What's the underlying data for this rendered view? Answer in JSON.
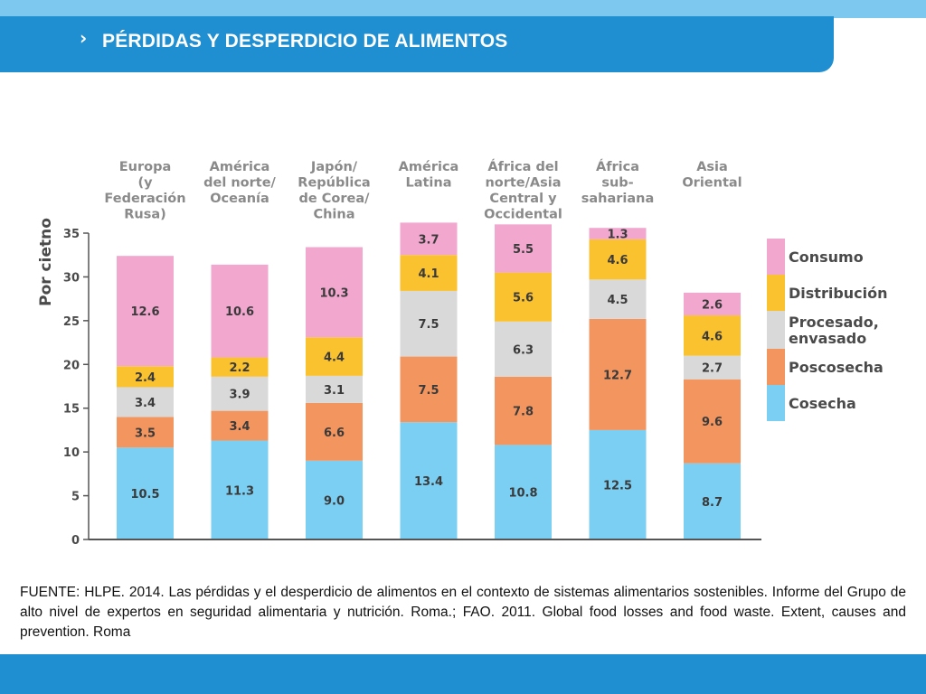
{
  "header": {
    "chevron": "›",
    "title": "PÉRDIDAS Y DESPERDICIO DE ALIMENTOS"
  },
  "colors": {
    "top_strip": "#7cc8ef",
    "title_bar": "#1f8fd1",
    "bottom_bar": "#1f8fd1"
  },
  "chart_data": {
    "type": "bar",
    "stacked": true,
    "ylabel": "Por cietno",
    "ylim": [
      0,
      35
    ],
    "yticks": [
      0,
      5,
      10,
      15,
      20,
      25,
      30,
      35
    ],
    "grid": false,
    "legend_position": "right",
    "categories": [
      [
        "Europa",
        "(y",
        "Federación",
        "Rusa)"
      ],
      [
        "América",
        "del norte/",
        "Oceanía"
      ],
      [
        "Japón/",
        "República",
        "de Corea/",
        "China"
      ],
      [
        "América",
        "Latina"
      ],
      [
        "África del",
        "norte/Asia",
        "Central y",
        "Occidental"
      ],
      [
        "África",
        "sub-",
        "sahariana"
      ],
      [
        "Asia",
        "Oriental"
      ]
    ],
    "series": [
      {
        "name": "Cosecha",
        "color": "#7acff3",
        "values": [
          10.5,
          11.3,
          9.0,
          13.4,
          10.8,
          12.5,
          8.7
        ],
        "labels": [
          "10.5",
          "11.3",
          "9.0",
          "13.4",
          "10.8",
          "12.5",
          "8.7"
        ]
      },
      {
        "name": "Poscosecha",
        "color": "#f3955f",
        "values": [
          3.5,
          3.4,
          6.6,
          7.5,
          7.8,
          12.7,
          9.6
        ],
        "labels": [
          "3.5",
          "3.4",
          "6.6",
          "7.5",
          "7.8",
          "12.7",
          "9.6"
        ]
      },
      {
        "name": "Procesado, envasado",
        "color": "#d9d9d9",
        "values": [
          3.4,
          3.9,
          3.1,
          7.5,
          6.3,
          4.5,
          2.7
        ],
        "labels": [
          "3.4",
          "3.9",
          "3.1",
          "7.5",
          "6.3",
          "4.5",
          "2.7"
        ]
      },
      {
        "name": "Distribución",
        "color": "#fbc230",
        "values": [
          2.4,
          2.2,
          4.4,
          4.1,
          5.6,
          4.6,
          4.6
        ],
        "labels": [
          "2.4",
          "2.2",
          "4.4",
          "4.1",
          "5.6",
          "4.6",
          "4.6"
        ]
      },
      {
        "name": "Consumo",
        "color": "#f2a7cf",
        "values": [
          12.6,
          10.6,
          10.3,
          3.7,
          5.5,
          1.3,
          2.6
        ],
        "labels": [
          "12.6",
          "10.6",
          "10.3",
          "3.7",
          "5.5",
          "1.3",
          "2.6"
        ]
      }
    ],
    "legend": [
      {
        "series": "Consumo",
        "lines": [
          "Consumo"
        ]
      },
      {
        "series": "Distribución",
        "lines": [
          "Distribución"
        ]
      },
      {
        "series": "Procesado, envasado",
        "lines": [
          "Procesado,",
          "envasado"
        ]
      },
      {
        "series": "Poscosecha",
        "lines": [
          "Poscosecha"
        ]
      },
      {
        "series": "Cosecha",
        "lines": [
          "Cosecha"
        ]
      }
    ],
    "text_color": "#4a4a4a",
    "axis_color": "#555555"
  },
  "source": {
    "text": "FUENTE: HLPE. 2014. Las pérdidas y el desperdicio de alimentos en el contexto de sistemas alimentarios sostenibles. Informe del Grupo de alto nivel de expertos en seguridad alimentaria y nutrición. Roma.; FAO. 2011. Global food losses and food waste. Extent, causes and prevention. Roma"
  }
}
